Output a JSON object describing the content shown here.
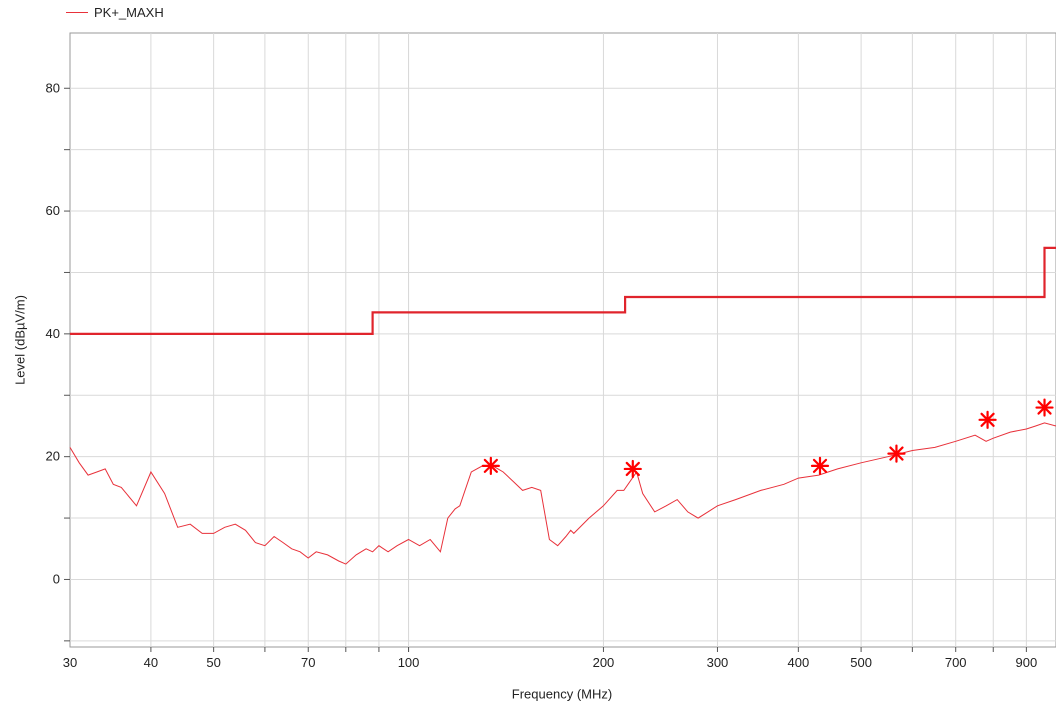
{
  "chart_data": {
    "type": "line",
    "xlabel": "Frequency (MHz)",
    "ylabel": "Level (dBµV/m)",
    "xscale": "log",
    "xlim": [
      30,
      1000
    ],
    "ylim": [
      -11,
      89
    ],
    "grid": true,
    "legend": {
      "placement": "top-left",
      "entries": [
        "PK+_MAXH"
      ]
    },
    "x_ticks": [
      30,
      40,
      50,
      70,
      100,
      200,
      300,
      400,
      500,
      700,
      900
    ],
    "y_ticks": [
      0,
      20,
      40,
      60,
      80
    ],
    "colors": {
      "trace": "#e8313a",
      "limit": "#e0242c",
      "grid": "#d9d9d9"
    },
    "series": [
      {
        "name": "PK+_MAXH",
        "x": [
          30,
          31,
          32,
          33,
          34,
          35,
          36,
          38,
          40,
          42,
          44,
          46,
          48,
          50,
          52,
          54,
          56,
          58,
          60,
          62,
          64,
          66,
          68,
          70,
          72,
          75,
          78,
          80,
          83,
          86,
          88,
          90,
          93,
          96,
          100,
          104,
          108,
          112,
          115,
          118,
          120,
          125,
          130,
          135,
          140,
          145,
          150,
          155,
          160,
          165,
          170,
          175,
          178,
          180,
          190,
          200,
          210,
          215,
          220,
          225,
          230,
          240,
          250,
          260,
          270,
          280,
          290,
          300,
          320,
          350,
          380,
          400,
          430,
          460,
          500,
          550,
          600,
          650,
          700,
          750,
          780,
          800,
          850,
          900,
          930,
          960,
          1000
        ],
        "values": [
          21.5,
          19,
          17,
          17.5,
          18,
          15.5,
          15,
          12,
          17.5,
          14,
          8.5,
          9,
          7.5,
          7.5,
          8.5,
          9,
          8,
          6,
          5.5,
          7,
          6,
          5,
          4.5,
          3.5,
          4.5,
          4,
          3,
          2.5,
          4,
          5,
          4.5,
          5.5,
          4.5,
          5.5,
          6.5,
          5.5,
          6.5,
          4.5,
          10,
          11.5,
          12,
          17.5,
          18.5,
          18.5,
          17.5,
          16,
          14.5,
          15,
          14.5,
          6.5,
          5.5,
          7,
          8,
          7.5,
          10,
          12,
          14.5,
          14.5,
          16,
          17.5,
          14,
          11,
          12,
          13,
          11,
          10,
          11,
          12,
          13,
          14.5,
          15.5,
          16.5,
          17,
          18,
          19,
          20,
          21,
          21.5,
          22.5,
          23.5,
          22.5,
          23,
          24,
          24.5,
          25,
          25.5,
          25
        ]
      }
    ],
    "limit_line": {
      "x": [
        30,
        88,
        88,
        216,
        216,
        960,
        960,
        1000
      ],
      "values": [
        40,
        40,
        43.5,
        43.5,
        46,
        46,
        54,
        54
      ]
    },
    "markers": {
      "x": [
        134,
        222,
        432,
        567,
        784,
        960
      ],
      "values": [
        18.5,
        18,
        18.5,
        20.5,
        26,
        28
      ]
    }
  }
}
